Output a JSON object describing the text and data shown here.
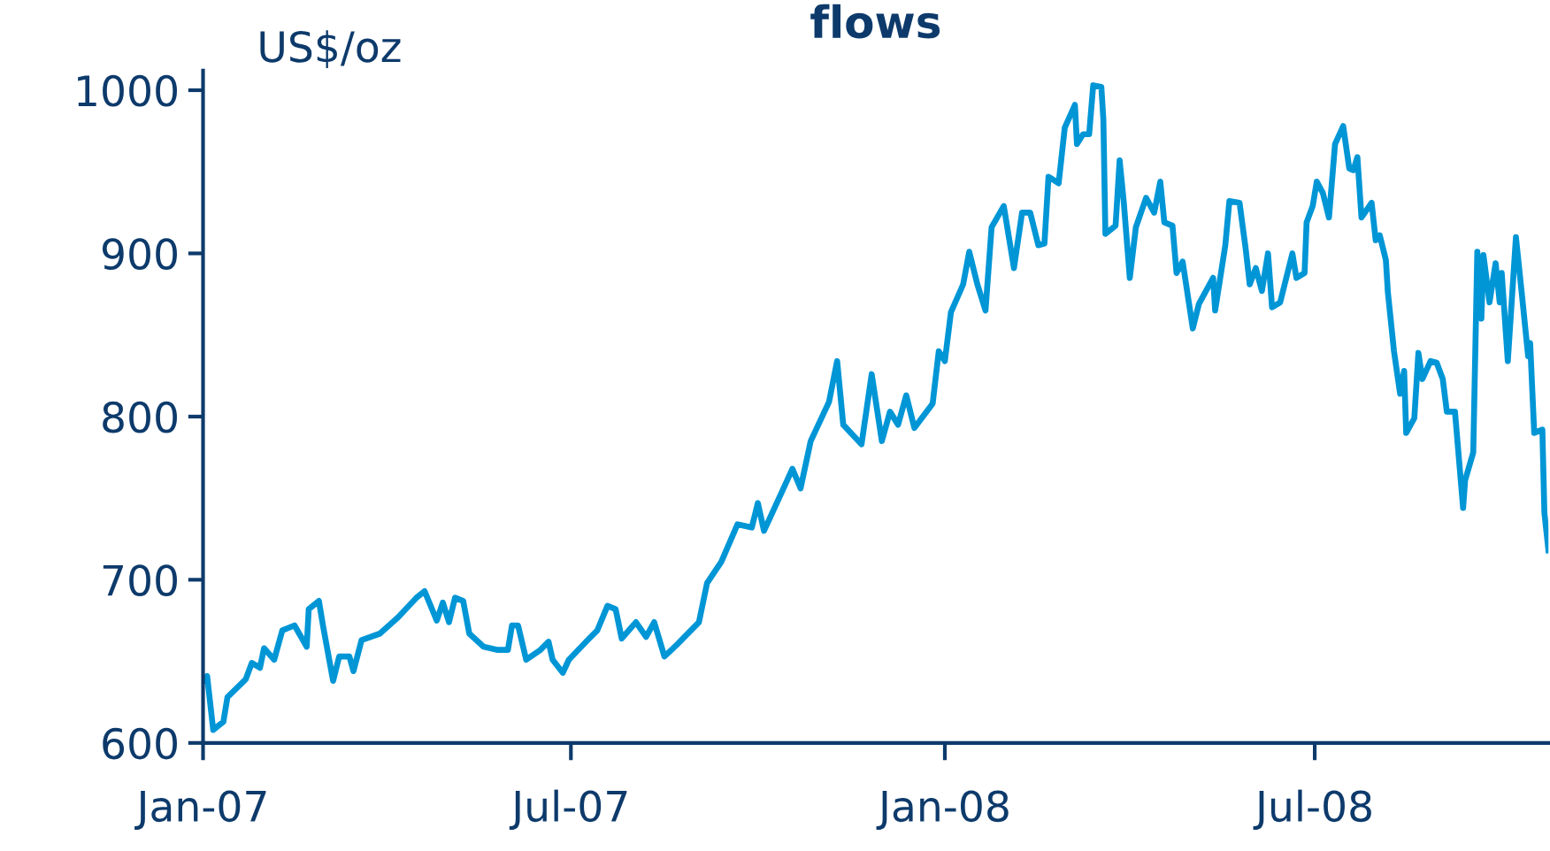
{
  "chart_data": {
    "type": "line",
    "title": "flows",
    "ylabel": "US$/oz",
    "x": [
      "2007-01-01",
      "2007-01-03",
      "2007-01-06",
      "2007-01-11",
      "2007-01-13",
      "2007-01-22",
      "2007-01-25",
      "2007-01-29",
      "2007-01-31",
      "2007-02-05",
      "2007-02-09",
      "2007-02-15",
      "2007-02-21",
      "2007-02-22",
      "2007-02-27",
      "2007-03-01",
      "2007-03-06",
      "2007-03-09",
      "2007-03-14",
      "2007-03-16",
      "2007-03-20",
      "2007-03-29",
      "2007-04-07",
      "2007-04-16",
      "2007-04-20",
      "2007-04-26",
      "2007-04-29",
      "2007-05-02",
      "2007-05-05",
      "2007-05-09",
      "2007-05-12",
      "2007-05-19",
      "2007-05-26",
      "2007-05-31",
      "2007-06-02",
      "2007-06-05",
      "2007-06-09",
      "2007-06-16",
      "2007-06-20",
      "2007-06-22",
      "2007-06-27",
      "2007-06-30",
      "2007-07-10",
      "2007-07-14",
      "2007-07-19",
      "2007-07-23",
      "2007-07-26",
      "2007-08-02",
      "2007-08-07",
      "2007-08-11",
      "2007-08-16",
      "2007-08-22",
      "2007-09-02",
      "2007-09-06",
      "2007-09-13",
      "2007-09-21",
      "2007-09-28",
      "2007-10-01",
      "2007-10-04",
      "2007-10-14",
      "2007-10-18",
      "2007-10-22",
      "2007-10-27",
      "2007-11-05",
      "2007-11-09",
      "2007-11-12",
      "2007-11-21",
      "2007-11-26",
      "2007-12-01",
      "2007-12-05",
      "2007-12-09",
      "2007-12-13",
      "2007-12-17",
      "2007-12-26",
      "2007-12-29",
      "2008-01-01",
      "2008-01-04",
      "2008-01-10",
      "2008-01-13",
      "2008-01-17",
      "2008-01-21",
      "2008-01-24",
      "2008-01-30",
      "2008-02-04",
      "2008-02-08",
      "2008-02-12",
      "2008-02-16",
      "2008-02-19",
      "2008-02-21",
      "2008-02-26",
      "2008-02-29",
      "2008-03-05",
      "2008-03-06",
      "2008-03-09",
      "2008-03-12",
      "2008-03-14",
      "2008-03-18",
      "2008-03-19",
      "2008-03-20",
      "2008-03-25",
      "2008-03-27",
      "2008-03-29",
      "2008-04-01",
      "2008-04-04",
      "2008-04-09",
      "2008-04-13",
      "2008-04-16",
      "2008-04-18",
      "2008-04-22",
      "2008-04-24",
      "2008-04-27",
      "2008-05-02",
      "2008-05-05",
      "2008-05-12",
      "2008-05-13",
      "2008-05-18",
      "2008-05-20",
      "2008-05-25",
      "2008-05-28",
      "2008-05-30",
      "2008-06-02",
      "2008-06-05",
      "2008-06-08",
      "2008-06-10",
      "2008-06-14",
      "2008-06-20",
      "2008-06-22",
      "2008-06-26",
      "2008-06-27",
      "2008-06-30",
      "2008-07-02",
      "2008-07-05",
      "2008-07-08",
      "2008-07-10",
      "2008-07-11",
      "2008-07-15",
      "2008-07-18",
      "2008-07-20",
      "2008-07-22",
      "2008-07-24",
      "2008-07-29",
      "2008-07-31",
      "2008-08-02",
      "2008-08-05",
      "2008-08-06",
      "2008-08-09",
      "2008-08-12",
      "2008-08-14",
      "2008-08-15",
      "2008-08-19",
      "2008-08-21",
      "2008-08-23",
      "2008-08-27",
      "2008-08-30",
      "2008-09-02",
      "2008-09-04",
      "2008-09-08",
      "2008-09-12",
      "2008-09-13",
      "2008-09-17",
      "2008-09-19",
      "2008-09-21",
      "2008-09-22",
      "2008-09-25",
      "2008-09-28",
      "2008-09-30",
      "2008-10-01",
      "2008-10-04",
      "2008-10-08",
      "2008-10-11",
      "2008-10-14",
      "2008-10-15",
      "2008-10-17",
      "2008-10-21",
      "2008-10-22",
      "2008-10-24"
    ],
    "series": [
      {
        "color": "#0096d6",
        "values": [
          638,
          641,
          608,
          613,
          628,
          639,
          649,
          646,
          658,
          651,
          669,
          672,
          659,
          682,
          687,
          672,
          638,
          653,
          653,
          644,
          663,
          667,
          677,
          689,
          693,
          675,
          686,
          674,
          689,
          687,
          667,
          659,
          657,
          657,
          672,
          672,
          651,
          657,
          662,
          651,
          643,
          651,
          664,
          669,
          684,
          682,
          664,
          674,
          665,
          674,
          653,
          660,
          674,
          698,
          711,
          734,
          732,
          747,
          730,
          757,
          768,
          756,
          785,
          809,
          834,
          795,
          783,
          826,
          785,
          803,
          795,
          813,
          793,
          808,
          840,
          834,
          864,
          881,
          901,
          881,
          865,
          916,
          929,
          891,
          925,
          925,
          905,
          906,
          947,
          943,
          977,
          991,
          967,
          973,
          973,
          1003,
          1002,
          982,
          912,
          917,
          957,
          932,
          885,
          916,
          934,
          925,
          944,
          919,
          917,
          888,
          895,
          854,
          869,
          885,
          865,
          905,
          932,
          931,
          903,
          881,
          891,
          877,
          900,
          867,
          870,
          900,
          885,
          888,
          919,
          929,
          944,
          937,
          922,
          952,
          967,
          978,
          952,
          951,
          959,
          922,
          931,
          908,
          911,
          896,
          876,
          840,
          814,
          828,
          790,
          799,
          839,
          823,
          834,
          833,
          823,
          803,
          803,
          744,
          761,
          778,
          901,
          860,
          899,
          870,
          894,
          870,
          888,
          834,
          910,
          874,
          837,
          845,
          790,
          792,
          741,
          718
        ]
      }
    ],
    "xlim": [
      "2007-01-01",
      "2008-10-24"
    ],
    "xticks": [
      {
        "value": "2007-01-01",
        "label": "Jan-07"
      },
      {
        "value": "2007-07-01",
        "label": "Jul-07"
      },
      {
        "value": "2008-01-01",
        "label": "Jan-08"
      },
      {
        "value": "2008-07-01",
        "label": "Jul-08"
      }
    ],
    "ylim": [
      600,
      1012
    ],
    "yticks": [
      600,
      700,
      800,
      900,
      1000
    ],
    "grid": false,
    "legend": false,
    "line_style": "solid",
    "marker": "none"
  }
}
